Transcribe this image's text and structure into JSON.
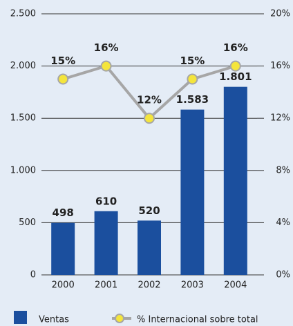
{
  "chart_data": {
    "type": "bar-line",
    "categories": [
      "2000",
      "2001",
      "2002",
      "2003",
      "2004"
    ],
    "series": [
      {
        "name": "Ventas",
        "type": "bar",
        "color": "#1b4f9e",
        "values": [
          498,
          610,
          520,
          1583,
          1801
        ],
        "value_labels": [
          "498",
          "610",
          "520",
          "1.583",
          "1.801"
        ]
      },
      {
        "name": "% Internacional sobre total",
        "type": "line",
        "axis": "y2",
        "color": "#f4e53c",
        "line_color": "#a6a6a6",
        "values": [
          15,
          16,
          12,
          15,
          16
        ],
        "value_labels": [
          "15%",
          "16%",
          "12%",
          "15%",
          "16%"
        ]
      }
    ],
    "ylim": [
      0,
      2500
    ],
    "yticks": [
      0,
      500,
      {
        "value": 1000,
        "label": "1.000"
      },
      {
        "value": 1500,
        "label": "1.500"
      },
      {
        "value": 2000,
        "label": "2.000"
      },
      {
        "value": 2500,
        "label": "2.500"
      }
    ],
    "y2lim": [
      0,
      20
    ],
    "y2ticks": [
      {
        "value": 0,
        "label": "0%"
      },
      {
        "value": 4,
        "label": "4%"
      },
      {
        "value": 8,
        "label": "8%"
      },
      {
        "value": 12,
        "label": "12%"
      },
      {
        "value": 16,
        "label": "16%"
      },
      {
        "value": 20,
        "label": "20%"
      }
    ],
    "grid": true,
    "legend": "bottom"
  }
}
